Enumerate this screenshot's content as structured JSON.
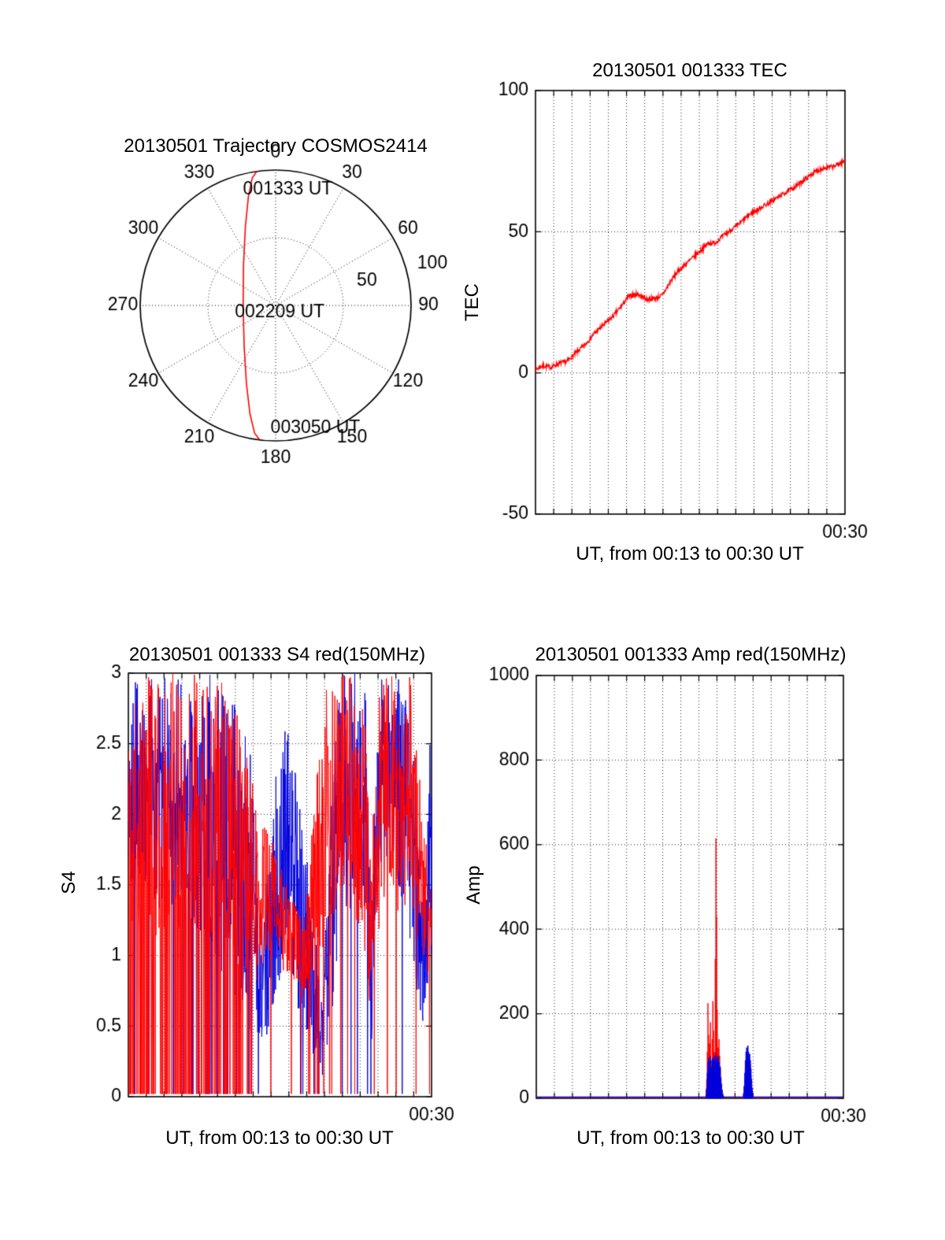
{
  "colors": {
    "red": "#ff0000",
    "blue": "#0000dd",
    "axis": "#000000",
    "grid": "#222222"
  },
  "chart_data": [
    {
      "type": "polar-line",
      "title": "20130501 Trajectory COSMOS2414",
      "azimuth_ticks": [
        0,
        30,
        60,
        90,
        120,
        150,
        180,
        210,
        240,
        270,
        300,
        330
      ],
      "radial_ticks": [
        50,
        100
      ],
      "rlim": [
        0,
        100
      ],
      "annotations": [
        {
          "label": "001333 UT",
          "az": 6,
          "r": 86
        },
        {
          "label": "002209 UT",
          "az": 150,
          "r": 6
        },
        {
          "label": "003050 UT",
          "az": 162,
          "r": 95
        }
      ],
      "trajectory_points": [
        [
          352,
          100
        ],
        [
          349.6,
          95.7
        ],
        [
          345.9,
          82.6
        ],
        [
          339,
          62.3
        ],
        [
          322.3,
          38.7
        ],
        [
          270,
          24
        ],
        [
          217.2,
          38.4
        ],
        [
          200.3,
          62
        ],
        [
          193.3,
          82.3
        ],
        [
          189.4,
          95.4
        ],
        [
          186.9,
          99.7
        ]
      ]
    },
    {
      "type": "line",
      "title": "20130501 001333 TEC",
      "ylabel": "TEC",
      "xlabel": "UT, from 00:13 to 00:30 UT",
      "xtick_label": "00:30",
      "ylim": [
        -50,
        100
      ],
      "yticks": [
        {
          "v": 100,
          "label": "100"
        },
        {
          "v": 50,
          "label": "50"
        },
        {
          "v": 0,
          "label": "0"
        },
        {
          "v": -50,
          "label": "-50"
        }
      ],
      "grid_y": [
        0,
        50
      ],
      "xdivisions": 17,
      "noise_amp": 1.6,
      "series_keypoints": [
        [
          0,
          1
        ],
        [
          0.02,
          2.5
        ],
        [
          0.05,
          2
        ],
        [
          0.08,
          3.5
        ],
        [
          0.1,
          4
        ],
        [
          0.13,
          7
        ],
        [
          0.16,
          10
        ],
        [
          0.19,
          14
        ],
        [
          0.22,
          17
        ],
        [
          0.25,
          20
        ],
        [
          0.28,
          24
        ],
        [
          0.3,
          27
        ],
        [
          0.33,
          28
        ],
        [
          0.36,
          26
        ],
        [
          0.39,
          26.5
        ],
        [
          0.41,
          27.5
        ],
        [
          0.44,
          33
        ],
        [
          0.46,
          36
        ],
        [
          0.48,
          38
        ],
        [
          0.5,
          40
        ],
        [
          0.53,
          43
        ],
        [
          0.56,
          46
        ],
        [
          0.58,
          46
        ],
        [
          0.6,
          48
        ],
        [
          0.63,
          50.5
        ],
        [
          0.66,
          53
        ],
        [
          0.69,
          56
        ],
        [
          0.72,
          58
        ],
        [
          0.75,
          60
        ],
        [
          0.78,
          62
        ],
        [
          0.81,
          64
        ],
        [
          0.84,
          66
        ],
        [
          0.87,
          68.5
        ],
        [
          0.9,
          71
        ],
        [
          0.93,
          72.5
        ],
        [
          0.96,
          73
        ],
        [
          1,
          75
        ]
      ]
    },
    {
      "type": "noise-line",
      "title": "20130501 001333 S4 red(150MHz)",
      "ylabel": "S4",
      "xlabel": "UT, from 00:13 to 00:30 UT",
      "xtick_label": "00:30",
      "ylim": [
        0,
        3
      ],
      "yticks": [
        {
          "v": 3,
          "label": "3"
        },
        {
          "v": 2.5,
          "label": "2.5"
        },
        {
          "v": 2,
          "label": "2"
        },
        {
          "v": 1.5,
          "label": "1.5"
        },
        {
          "v": 1,
          "label": "1"
        },
        {
          "v": 0.5,
          "label": "0.5"
        },
        {
          "v": 0,
          "label": "0"
        }
      ],
      "grid_y": [
        0.5,
        1,
        1.5,
        2,
        2.5
      ],
      "xdivisions": 17,
      "samples": 900,
      "red_band": [
        [
          0,
          1.1,
          3.0
        ],
        [
          0.08,
          1.0,
          3.0
        ],
        [
          0.16,
          1.1,
          3.0
        ],
        [
          0.24,
          1.0,
          3.0
        ],
        [
          0.32,
          0.95,
          3.0
        ],
        [
          0.38,
          0.9,
          2.6
        ],
        [
          0.42,
          0.8,
          2.1
        ],
        [
          0.46,
          1.0,
          1.9
        ],
        [
          0.5,
          0.9,
          1.65
        ],
        [
          0.54,
          0.85,
          1.4
        ],
        [
          0.58,
          0.7,
          1.3
        ],
        [
          0.62,
          0.85,
          2.3
        ],
        [
          0.66,
          1.2,
          3.0
        ],
        [
          0.7,
          1.4,
          3.0
        ],
        [
          0.74,
          1.3,
          3.0
        ],
        [
          0.78,
          1.0,
          2.8
        ],
        [
          0.8,
          0.5,
          1.7
        ],
        [
          0.83,
          1.2,
          3.0
        ],
        [
          0.87,
          1.5,
          3.0
        ],
        [
          0.9,
          1.2,
          2.7
        ],
        [
          0.93,
          1.4,
          3.0
        ],
        [
          0.96,
          1.0,
          2.3
        ],
        [
          1,
          0.7,
          1.5
        ]
      ],
      "red_zero_p": [
        [
          0,
          0.35
        ],
        [
          0.25,
          0.35
        ],
        [
          0.32,
          0.22
        ],
        [
          0.4,
          0.05
        ],
        [
          0.55,
          0.02
        ],
        [
          0.62,
          0.08
        ],
        [
          0.7,
          0.1
        ],
        [
          0.8,
          0.06
        ],
        [
          0.9,
          0.03
        ],
        [
          1,
          0.02
        ]
      ],
      "blue_band": [
        [
          0,
          1.5,
          3.0
        ],
        [
          0.12,
          1.3,
          3.0
        ],
        [
          0.22,
          1.2,
          3.0
        ],
        [
          0.3,
          0.9,
          3.0
        ],
        [
          0.36,
          0.5,
          2.8
        ],
        [
          0.4,
          0.45,
          2.5
        ],
        [
          0.44,
          0.3,
          1.1
        ],
        [
          0.48,
          0.5,
          2.2
        ],
        [
          0.52,
          1.1,
          2.7
        ],
        [
          0.56,
          0.6,
          2.2
        ],
        [
          0.6,
          0.3,
          1.5
        ],
        [
          0.64,
          0.15,
          0.7
        ],
        [
          0.67,
          0.5,
          2.3
        ],
        [
          0.7,
          1.2,
          3.0
        ],
        [
          0.74,
          1.5,
          3.0
        ],
        [
          0.78,
          1.2,
          3.0
        ],
        [
          0.8,
          0.3,
          1.5
        ],
        [
          0.83,
          1.6,
          3.0
        ],
        [
          0.86,
          1.6,
          3.0
        ],
        [
          0.9,
          1.4,
          3.0
        ],
        [
          0.94,
          0.8,
          2.5
        ],
        [
          0.97,
          0.4,
          1.4
        ],
        [
          1,
          1.0,
          2.8
        ]
      ],
      "blue_zero_p": [
        [
          0,
          0.06
        ],
        [
          0.3,
          0.05
        ],
        [
          0.5,
          0.02
        ],
        [
          0.62,
          0.04
        ],
        [
          0.75,
          0.04
        ],
        [
          1,
          0.02
        ]
      ]
    },
    {
      "type": "spike",
      "title": "20130501 001333 Amp red(150MHz)",
      "ylabel": "Amp",
      "xlabel": "UT, from 00:13 to 00:30 UT",
      "xtick_label": "00:30",
      "ylim": [
        0,
        1000
      ],
      "yticks": [
        {
          "v": 1000,
          "label": "1000"
        },
        {
          "v": 800,
          "label": "800"
        },
        {
          "v": 600,
          "label": "600"
        },
        {
          "v": 400,
          "label": "400"
        },
        {
          "v": 200,
          "label": "200"
        },
        {
          "v": 0,
          "label": "0"
        }
      ],
      "grid_y": [
        200,
        400,
        600,
        800
      ],
      "xdivisions": 17,
      "baseline": {
        "red": 2,
        "blue": 3
      },
      "spikes": [
        [
          0.553,
          20,
          8
        ],
        [
          0.555,
          45,
          25
        ],
        [
          0.557,
          110,
          60
        ],
        [
          0.559,
          225,
          85
        ],
        [
          0.561,
          150,
          95
        ],
        [
          0.563,
          95,
          70
        ],
        [
          0.565,
          130,
          88
        ],
        [
          0.567,
          180,
          100
        ],
        [
          0.569,
          90,
          75
        ],
        [
          0.571,
          60,
          40
        ],
        [
          0.573,
          140,
          90
        ],
        [
          0.575,
          230,
          95
        ],
        [
          0.577,
          160,
          85
        ],
        [
          0.579,
          110,
          100
        ],
        [
          0.581,
          75,
          60
        ],
        [
          0.583,
          330,
          90
        ],
        [
          0.585,
          615,
          105
        ],
        [
          0.587,
          430,
          95
        ],
        [
          0.589,
          210,
          80
        ],
        [
          0.591,
          120,
          95
        ],
        [
          0.593,
          90,
          100
        ],
        [
          0.595,
          140,
          85
        ],
        [
          0.597,
          100,
          60
        ],
        [
          0.599,
          70,
          75
        ],
        [
          0.601,
          45,
          50
        ],
        [
          0.603,
          30,
          35
        ],
        [
          0.605,
          20,
          20
        ],
        [
          0.607,
          12,
          10
        ],
        [
          0.609,
          6,
          5
        ],
        [
          0.675,
          10,
          12
        ],
        [
          0.677,
          25,
          30
        ],
        [
          0.679,
          45,
          60
        ],
        [
          0.681,
          70,
          90
        ],
        [
          0.683,
          60,
          110
        ],
        [
          0.685,
          80,
          120
        ],
        [
          0.687,
          95,
          115
        ],
        [
          0.689,
          85,
          125
        ],
        [
          0.691,
          100,
          110
        ],
        [
          0.693,
          75,
          95
        ],
        [
          0.695,
          60,
          105
        ],
        [
          0.697,
          80,
          90
        ],
        [
          0.699,
          55,
          70
        ],
        [
          0.701,
          35,
          45
        ],
        [
          0.703,
          20,
          25
        ],
        [
          0.705,
          8,
          10
        ]
      ]
    }
  ]
}
